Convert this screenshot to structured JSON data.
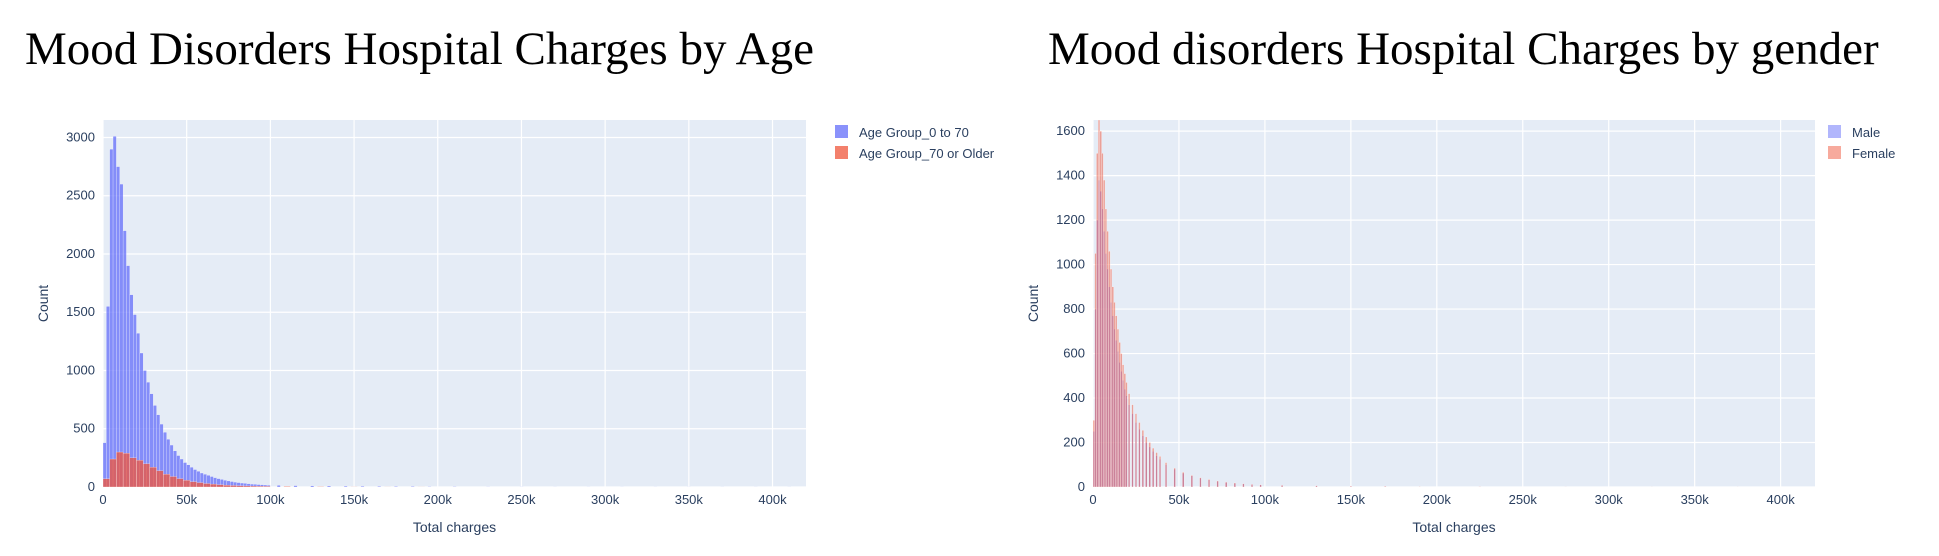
{
  "chart_data": [
    {
      "type": "bar",
      "title": "Mood Disorders Hospital Charges by Age",
      "xlabel": "Total charges",
      "ylabel": "Count",
      "xlim": [
        0,
        420000
      ],
      "ylim": [
        0,
        3150
      ],
      "x_ticks": [
        0,
        50000,
        100000,
        150000,
        200000,
        250000,
        300000,
        350000,
        400000
      ],
      "x_tick_labels": [
        "0",
        "50k",
        "100k",
        "150k",
        "200k",
        "250k",
        "300k",
        "350k",
        "400k"
      ],
      "y_ticks": [
        0,
        500,
        1000,
        1500,
        2000,
        2500,
        3000
      ],
      "y_tick_labels": [
        "0",
        "500",
        "1000",
        "1500",
        "2000",
        "2500",
        "3000"
      ],
      "grid": true,
      "legend_position": "top-right",
      "barmode": "overlay",
      "series": [
        {
          "name": "Age Group_0 to 70",
          "color": "#636efa",
          "bin_width": 2000,
          "x": [
            1000,
            3000,
            5000,
            7000,
            9000,
            11000,
            13000,
            15000,
            17000,
            19000,
            21000,
            23000,
            25000,
            27000,
            29000,
            31000,
            33000,
            35000,
            37000,
            39000,
            41000,
            43000,
            45000,
            47000,
            49000,
            51000,
            53000,
            55000,
            57000,
            59000,
            61000,
            63000,
            65000,
            67000,
            69000,
            71000,
            73000,
            75000,
            77000,
            79000,
            81000,
            83000,
            85000,
            87000,
            89000,
            91000,
            93000,
            95000,
            97000,
            99000,
            105000,
            115000,
            125000,
            135000,
            145000,
            155000,
            165000,
            175000,
            185000,
            195000,
            210000,
            230000,
            250000,
            270000,
            290000,
            310000,
            330000,
            350000,
            370000,
            390000,
            410000
          ],
          "values": [
            380,
            1550,
            2900,
            3010,
            2750,
            2600,
            2200,
            1900,
            1650,
            1480,
            1320,
            1150,
            1000,
            900,
            800,
            700,
            620,
            540,
            470,
            410,
            360,
            310,
            270,
            240,
            210,
            190,
            170,
            150,
            135,
            120,
            110,
            100,
            90,
            80,
            72,
            65,
            58,
            52,
            47,
            42,
            38,
            34,
            31,
            28,
            25,
            23,
            21,
            19,
            17,
            15,
            14,
            12,
            10,
            9,
            8,
            7,
            6,
            5,
            5,
            4,
            4,
            3,
            3,
            2,
            2,
            2,
            2,
            1,
            1,
            1,
            1
          ]
        },
        {
          "name": "Age Group_70 or Older",
          "color": "#ef553b",
          "bin_width": 4000,
          "x": [
            2000,
            6000,
            10000,
            14000,
            18000,
            22000,
            26000,
            30000,
            34000,
            38000,
            42000,
            46000,
            50000,
            54000,
            58000,
            62000,
            66000,
            70000,
            74000,
            78000,
            82000,
            86000,
            90000,
            94000,
            98000,
            110000,
            130000,
            150000,
            170000,
            190000
          ],
          "values": [
            70,
            240,
            300,
            290,
            250,
            230,
            200,
            170,
            140,
            110,
            90,
            72,
            58,
            46,
            38,
            30,
            25,
            20,
            16,
            13,
            11,
            9,
            8,
            7,
            6,
            5,
            4,
            3,
            2,
            2
          ]
        }
      ]
    },
    {
      "type": "bar",
      "title": "Mood disorders Hospital Charges by gender",
      "xlabel": "Total charges",
      "ylabel": "Count",
      "xlim": [
        0,
        420000
      ],
      "ylim": [
        0,
        1650
      ],
      "x_ticks": [
        0,
        50000,
        100000,
        150000,
        200000,
        250000,
        300000,
        350000,
        400000
      ],
      "x_tick_labels": [
        "0",
        "50k",
        "100k",
        "150k",
        "200k",
        "250k",
        "300k",
        "350k",
        "400k"
      ],
      "y_ticks": [
        0,
        200,
        400,
        600,
        800,
        1000,
        1200,
        1400,
        1600
      ],
      "y_tick_labels": [
        "0",
        "200",
        "400",
        "600",
        "800",
        "1000",
        "1200",
        "1400",
        "1600"
      ],
      "grid": true,
      "legend_position": "top-right",
      "barmode": "overlay",
      "series": [
        {
          "name": "Male",
          "color": "#636efa",
          "bin_width": 1000,
          "x": [
            500,
            1500,
            2500,
            3500,
            4500,
            5500,
            6500,
            7500,
            8500,
            9500,
            10500,
            11500,
            12500,
            13500,
            14500,
            15500,
            16500,
            17500,
            18500,
            19500,
            21000,
            23000,
            25000,
            27000,
            29000,
            31000,
            33000,
            35000,
            37000,
            39000,
            42500,
            47500,
            52500,
            57500,
            62500,
            67500,
            72500,
            77500,
            82500,
            87500,
            92500,
            97500,
            110000,
            130000,
            150000,
            170000,
            190000,
            225000,
            275000,
            325000,
            375000
          ],
          "values": [
            250,
            800,
            1200,
            1380,
            1330,
            1250,
            1150,
            1050,
            980,
            900,
            830,
            770,
            710,
            660,
            610,
            560,
            520,
            480,
            440,
            410,
            370,
            330,
            290,
            260,
            230,
            200,
            180,
            160,
            140,
            125,
            100,
            80,
            62,
            50,
            40,
            32,
            26,
            21,
            17,
            14,
            12,
            10,
            8,
            6,
            4,
            3,
            2,
            2,
            1,
            1,
            1
          ]
        },
        {
          "name": "Female",
          "color": "#ef553b",
          "bin_width": 1000,
          "x": [
            500,
            1500,
            2500,
            3500,
            4500,
            5500,
            6500,
            7500,
            8500,
            9500,
            10500,
            11500,
            12500,
            13500,
            14500,
            15500,
            16500,
            17500,
            18500,
            19500,
            21000,
            23000,
            25000,
            27000,
            29000,
            31000,
            33000,
            35000,
            37000,
            39000,
            42500,
            47500,
            52500,
            57500,
            62500,
            67500,
            72500,
            77500,
            82500,
            87500,
            92500,
            97500,
            110000,
            130000,
            150000,
            170000,
            190000,
            225000,
            275000,
            325000,
            375000
          ],
          "values": [
            300,
            1050,
            1500,
            1670,
            1600,
            1500,
            1380,
            1250,
            1150,
            1060,
            980,
            900,
            830,
            770,
            710,
            650,
            600,
            550,
            510,
            470,
            420,
            370,
            330,
            290,
            255,
            225,
            200,
            175,
            155,
            138,
            110,
            85,
            66,
            52,
            42,
            34,
            27,
            22,
            18,
            15,
            12,
            10,
            8,
            6,
            4,
            3,
            2,
            2,
            1,
            1,
            1
          ]
        }
      ]
    }
  ]
}
